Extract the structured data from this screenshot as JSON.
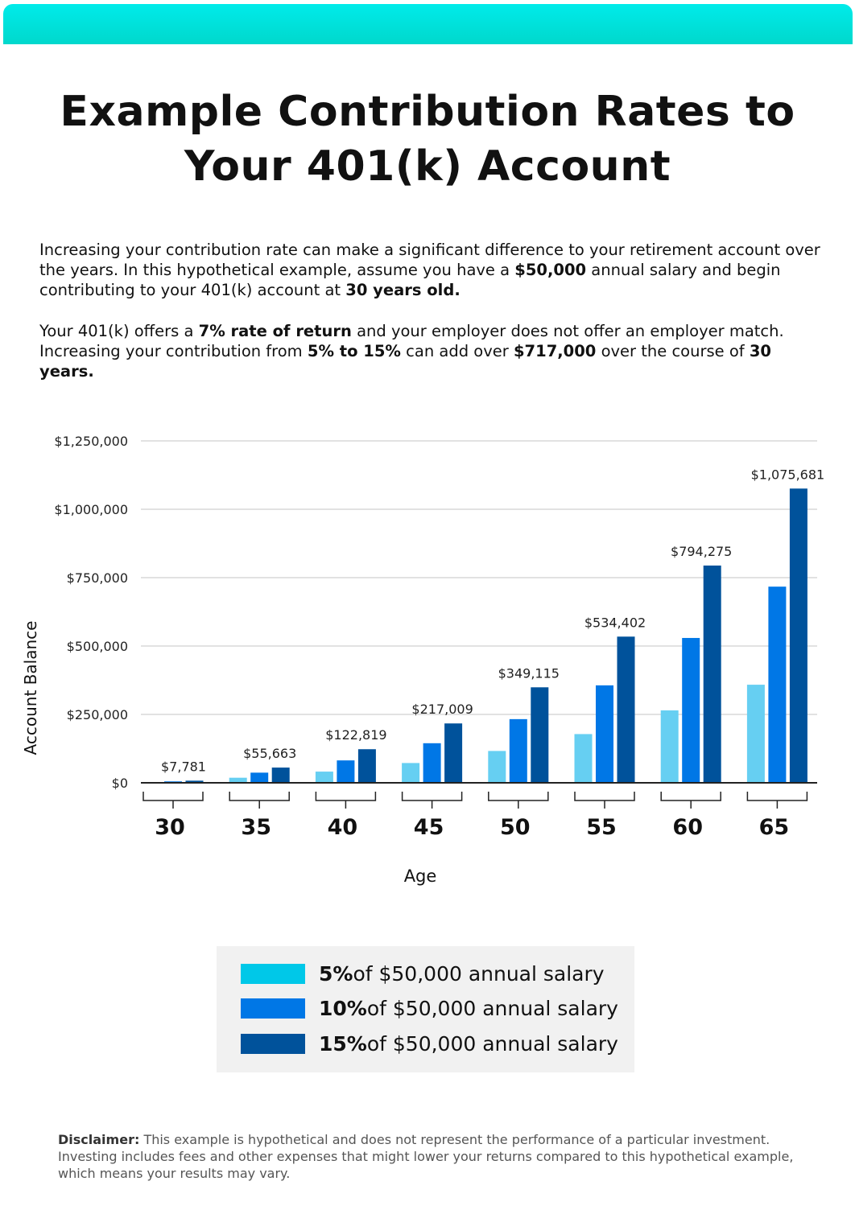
{
  "header": {
    "title_line1": "Example Contribution Rates to",
    "title_line2": "Your 401(k) Account",
    "band_color": "#00e3dc"
  },
  "intro": {
    "paragraph1": [
      {
        "text": "Increasing your contribution rate can make a significant difference to your retirement account over the years. In this hypothetical example, assume you have a ",
        "bold": false
      },
      {
        "text": "$50,000",
        "bold": true
      },
      {
        "text": " annual salary and begin contributing to your 401(k) account at ",
        "bold": false
      },
      {
        "text": "30 years old.",
        "bold": true
      }
    ],
    "paragraph2": [
      {
        "text": "Your 401(k) offers a ",
        "bold": false
      },
      {
        "text": "7% rate of return",
        "bold": true
      },
      {
        "text": " and your employer does not offer an employer match. Increasing your contribution from ",
        "bold": false
      },
      {
        "text": "5% to 15%",
        "bold": true
      },
      {
        "text": " can add over ",
        "bold": false
      },
      {
        "text": "$717,000",
        "bold": true
      },
      {
        "text": " over the course of ",
        "bold": false
      },
      {
        "text": "30 years.",
        "bold": true
      }
    ]
  },
  "chart_data": {
    "type": "bar",
    "xlabel": "Age",
    "ylabel": "Account Balance",
    "ylim": [
      0,
      1250000
    ],
    "yticks": [
      0,
      250000,
      500000,
      750000,
      1000000,
      1250000
    ],
    "ytick_labels": [
      "$0",
      "$250,000",
      "$500,000",
      "$750,000",
      "$1,000,000",
      "$1,250,000"
    ],
    "grid": true,
    "categories": [
      "30",
      "35",
      "40",
      "45",
      "50",
      "55",
      "60",
      "65"
    ],
    "series": [
      {
        "name": "5% of $50,000 annual salary",
        "color": "#66cff2",
        "legend_color": "#00c8e8",
        "values": [
          2594,
          18554,
          40940,
          72336,
          116372,
          178134,
          264758,
          358560
        ]
      },
      {
        "name": "10% of $50,000 annual salary",
        "color": "#0077e6",
        "legend_color": "#0077e6",
        "values": [
          5187,
          37109,
          81879,
          144673,
          232743,
          356268,
          529517,
          717121
        ]
      },
      {
        "name": "15% of $50,000 annual salary",
        "color": "#00529b",
        "legend_color": "#00529b",
        "values": [
          7781,
          55663,
          122819,
          217009,
          349115,
          534402,
          794275,
          1075681
        ]
      }
    ],
    "data_labels": [
      "$7,781",
      "$55,663",
      "$122,819",
      "$217,009",
      "$349,115",
      "$534,402",
      "$794,275",
      "$1,075,681"
    ],
    "legend_position": "bottom"
  },
  "legend": [
    {
      "bold": "5%",
      "rest": " of $50,000 annual salary"
    },
    {
      "bold": "10%",
      "rest": " of $50,000 annual salary"
    },
    {
      "bold": "15%",
      "rest": " of $50,000 annual salary"
    }
  ],
  "disclaimer": {
    "label": "Disclaimer:",
    "text": " This example is hypothetical and does not represent the performance of a particular investment. Investing includes fees and other expenses that might lower your returns compared to this hypothetical example, which means your results may vary."
  }
}
